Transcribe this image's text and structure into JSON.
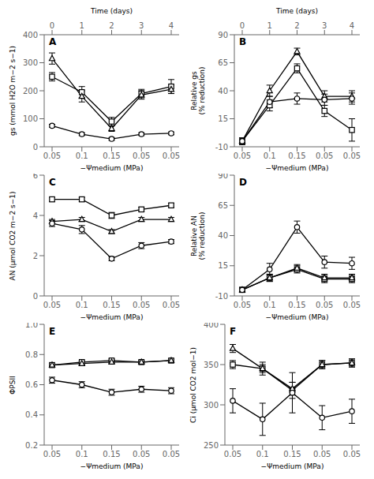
{
  "chart_data": [
    {
      "type": "line",
      "title": "A",
      "xlabel": "−Ψmedium (MPa)",
      "ylabel": "gs (mmol H2O m−2 s−1)",
      "x2label": "Time (days)",
      "categories": [
        "0.05",
        "0.1",
        "0.15",
        "0.05",
        "0.05"
      ],
      "x2_categories": [
        "0",
        "1",
        "2",
        "3",
        "4"
      ],
      "ylim": [
        0,
        400
      ],
      "yticks": [
        0,
        100,
        200,
        300,
        400
      ],
      "grid": false,
      "series": [
        {
          "marker": "square",
          "color": "black",
          "values": [
            250,
            195,
            90,
            190,
            215
          ],
          "errors": [
            15,
            20,
            15,
            15,
            25
          ]
        },
        {
          "marker": "triangle",
          "color": "black",
          "values": [
            315,
            180,
            65,
            185,
            205
          ],
          "errors": [
            20,
            20,
            10,
            15,
            15
          ]
        },
        {
          "marker": "circle",
          "color": "black",
          "values": [
            75,
            45,
            28,
            45,
            48
          ],
          "errors": [
            5,
            5,
            5,
            5,
            5
          ]
        }
      ]
    },
    {
      "type": "line",
      "title": "B",
      "xlabel": "−Ψmedium (MPa)",
      "ylabel": "Relative gs\n(% reduction)",
      "x2label": "Time (days)",
      "categories": [
        "0.05",
        "0.1",
        "0.15",
        "0.05",
        "0.05"
      ],
      "x2_categories": [
        "0",
        "1",
        "2",
        "3",
        "4"
      ],
      "ylim": [
        -10,
        90
      ],
      "yticks": [
        -10,
        15,
        40,
        65,
        90
      ],
      "grid": false,
      "series": [
        {
          "marker": "square",
          "color": "black",
          "values": [
            -5,
            27,
            60,
            22,
            5
          ],
          "errors": [
            3,
            5,
            4,
            5,
            10
          ]
        },
        {
          "marker": "triangle",
          "color": "black",
          "values": [
            -5,
            40,
            75,
            35,
            35
          ],
          "errors": [
            3,
            5,
            3,
            5,
            5
          ]
        },
        {
          "marker": "circle",
          "color": "black",
          "values": [
            -5,
            30,
            33,
            32,
            33
          ],
          "errors": [
            3,
            5,
            5,
            5,
            5
          ]
        }
      ]
    },
    {
      "type": "line",
      "title": "C",
      "xlabel": "−Ψmedium (MPa)",
      "ylabel": "AN (μmol CO2 m−2 s−1)",
      "categories": [
        "0.05",
        "0.1",
        "0.15",
        "0.05",
        "0.05"
      ],
      "ylim": [
        0,
        6
      ],
      "yticks": [
        0,
        2,
        4,
        6
      ],
      "grid": false,
      "series": [
        {
          "marker": "square",
          "color": "black",
          "values": [
            4.8,
            4.8,
            4.0,
            4.3,
            4.5
          ],
          "errors": [
            0.1,
            0.1,
            0.15,
            0.1,
            0.1
          ]
        },
        {
          "marker": "triangle",
          "color": "black",
          "values": [
            3.7,
            3.8,
            3.2,
            3.8,
            3.8
          ],
          "errors": [
            0.1,
            0.1,
            0.1,
            0.1,
            0.1
          ]
        },
        {
          "marker": "circle",
          "color": "black",
          "values": [
            3.6,
            3.3,
            1.85,
            2.5,
            2.7
          ],
          "errors": [
            0.15,
            0.2,
            0.1,
            0.15,
            0.1
          ]
        }
      ]
    },
    {
      "type": "line",
      "title": "D",
      "xlabel": "−Ψmedium (MPa)",
      "ylabel": "Relative AN\n(% reduction)",
      "categories": [
        "0.05",
        "0.1",
        "0.15",
        "0.05",
        "0.05"
      ],
      "ylim": [
        -10,
        90
      ],
      "yticks": [
        -10,
        15,
        40,
        65,
        90
      ],
      "grid": false,
      "series": [
        {
          "marker": "square",
          "color": "black",
          "values": [
            -5,
            5,
            12,
            4,
            4
          ],
          "errors": [
            2,
            3,
            3,
            3,
            3
          ]
        },
        {
          "marker": "triangle",
          "color": "black",
          "values": [
            -5,
            5,
            13,
            5,
            5
          ],
          "errors": [
            2,
            3,
            3,
            3,
            3
          ]
        },
        {
          "marker": "circle",
          "color": "black",
          "values": [
            -5,
            12,
            47,
            18,
            17
          ],
          "errors": [
            2,
            5,
            5,
            5,
            5
          ]
        }
      ]
    },
    {
      "type": "line",
      "title": "E",
      "xlabel": "−Ψmedium (MPa)",
      "ylabel": "ΦPSII",
      "categories": [
        "0.05",
        "0.1",
        "0.15",
        "0.05",
        "0.05"
      ],
      "ylim": [
        0.2,
        1.0
      ],
      "yticks": [
        0.2,
        0.4,
        0.6,
        0.8,
        {
          "value": 1.0,
          "label": "1.0"
        }
      ],
      "grid": false,
      "series": [
        {
          "marker": "square",
          "color": "black",
          "values": [
            0.73,
            0.75,
            0.76,
            0.75,
            0.76
          ],
          "errors": [
            0.01,
            0.01,
            0.01,
            0.01,
            0.01
          ]
        },
        {
          "marker": "triangle",
          "color": "black",
          "values": [
            0.73,
            0.74,
            0.75,
            0.75,
            0.76
          ],
          "errors": [
            0.01,
            0.01,
            0.01,
            0.01,
            0.01
          ]
        },
        {
          "marker": "circle",
          "color": "black",
          "values": [
            0.63,
            0.6,
            0.55,
            0.57,
            0.56
          ],
          "errors": [
            0.02,
            0.02,
            0.02,
            0.02,
            0.02
          ]
        }
      ]
    },
    {
      "type": "line",
      "title": "F",
      "xlabel": "−Ψmedium (MPa)",
      "ylabel": "Ci (μmol CO2 mol−1)",
      "categories": [
        "0.05",
        "0.1",
        "0.15",
        "0.05",
        "0.05"
      ],
      "ylim": [
        250,
        400
      ],
      "yticks": [
        250,
        300,
        350,
        400
      ],
      "grid": false,
      "series": [
        {
          "marker": "square",
          "color": "black",
          "values": [
            350,
            345,
            318,
            350,
            352
          ],
          "errors": [
            5,
            8,
            10,
            5,
            5
          ]
        },
        {
          "marker": "triangle",
          "color": "black",
          "values": [
            370,
            345,
            320,
            350,
            352
          ],
          "errors": [
            5,
            5,
            8,
            5,
            5
          ]
        },
        {
          "marker": "circle",
          "color": "black",
          "values": [
            305,
            282,
            315,
            284,
            292
          ],
          "errors": [
            15,
            20,
            25,
            15,
            15
          ]
        }
      ]
    }
  ]
}
